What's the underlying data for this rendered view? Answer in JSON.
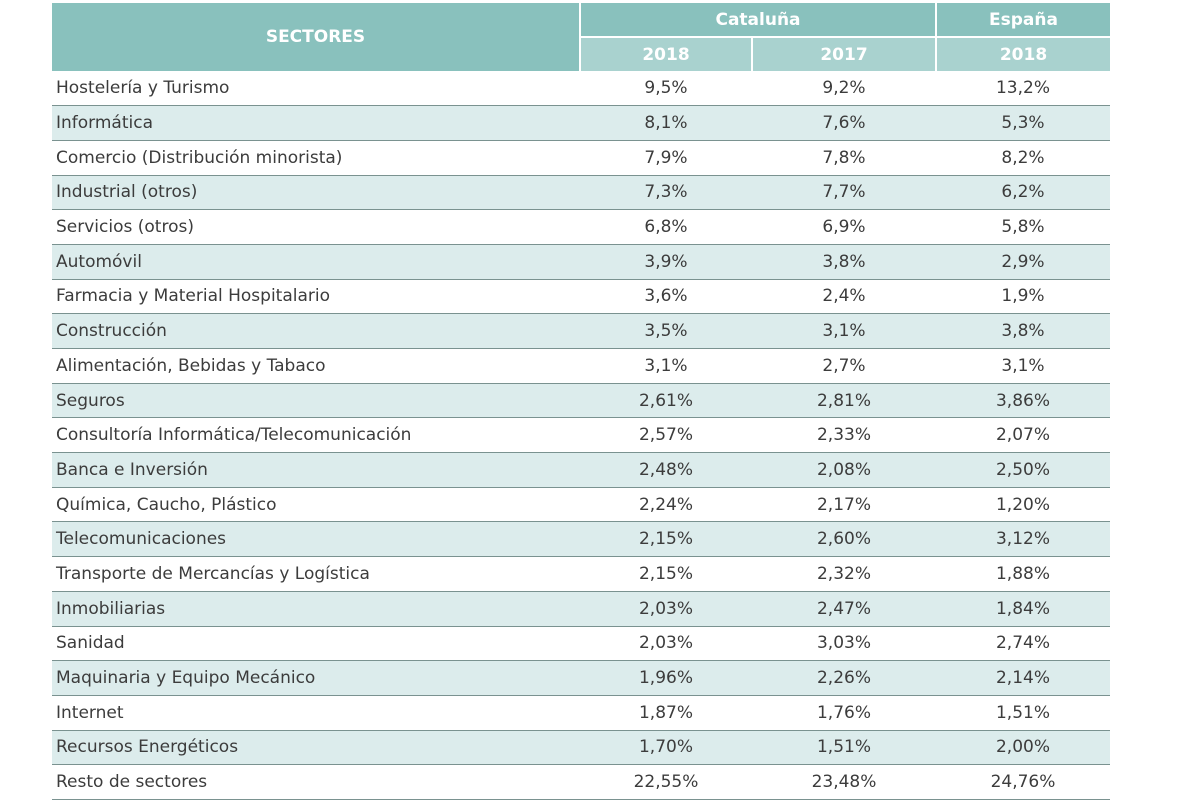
{
  "header": {
    "sectors_label": "SECTORES",
    "groups": [
      {
        "label": "Cataluña",
        "years": [
          "2018",
          "2017"
        ]
      },
      {
        "label": "España",
        "years": [
          "2018"
        ]
      }
    ]
  },
  "rows": [
    {
      "sector": "Hostelería y Turismo",
      "cat2018": "9,5%",
      "cat2017": "9,2%",
      "esp2018": "13,2%"
    },
    {
      "sector": "Informática",
      "cat2018": "8,1%",
      "cat2017": "7,6%",
      "esp2018": "5,3%"
    },
    {
      "sector": "Comercio (Distribución minorista)",
      "cat2018": "7,9%",
      "cat2017": "7,8%",
      "esp2018": "8,2%"
    },
    {
      "sector": "Industrial (otros)",
      "cat2018": "7,3%",
      "cat2017": "7,7%",
      "esp2018": "6,2%"
    },
    {
      "sector": "Servicios (otros)",
      "cat2018": "6,8%",
      "cat2017": "6,9%",
      "esp2018": "5,8%"
    },
    {
      "sector": "Automóvil",
      "cat2018": "3,9%",
      "cat2017": "3,8%",
      "esp2018": "2,9%"
    },
    {
      "sector": "Farmacia y Material Hospitalario",
      "cat2018": "3,6%",
      "cat2017": "2,4%",
      "esp2018": "1,9%"
    },
    {
      "sector": "Construcción",
      "cat2018": "3,5%",
      "cat2017": "3,1%",
      "esp2018": "3,8%"
    },
    {
      "sector": "Alimentación, Bebidas y Tabaco",
      "cat2018": "3,1%",
      "cat2017": "2,7%",
      "esp2018": "3,1%"
    },
    {
      "sector": "Seguros",
      "cat2018": "2,61%",
      "cat2017": "2,81%",
      "esp2018": "3,86%"
    },
    {
      "sector": "Consultoría Informática/Telecomunicación",
      "cat2018": "2,57%",
      "cat2017": "2,33%",
      "esp2018": "2,07%"
    },
    {
      "sector": "Banca e Inversión",
      "cat2018": "2,48%",
      "cat2017": "2,08%",
      "esp2018": "2,50%"
    },
    {
      "sector": "Química, Caucho, Plástico",
      "cat2018": "2,24%",
      "cat2017": "2,17%",
      "esp2018": "1,20%"
    },
    {
      "sector": "Telecomunicaciones",
      "cat2018": "2,15%",
      "cat2017": "2,60%",
      "esp2018": "3,12%"
    },
    {
      "sector": "Transporte de Mercancías y Logística",
      "cat2018": "2,15%",
      "cat2017": "2,32%",
      "esp2018": "1,88%"
    },
    {
      "sector": "Inmobiliarias",
      "cat2018": "2,03%",
      "cat2017": "2,47%",
      "esp2018": "1,84%"
    },
    {
      "sector": "Sanidad",
      "cat2018": "2,03%",
      "cat2017": "3,03%",
      "esp2018": "2,74%"
    },
    {
      "sector": "Maquinaria y Equipo Mecánico",
      "cat2018": "1,96%",
      "cat2017": "2,26%",
      "esp2018": "2,14%"
    },
    {
      "sector": "Internet",
      "cat2018": "1,87%",
      "cat2017": "1,76%",
      "esp2018": "1,51%"
    },
    {
      "sector": "Recursos Energéticos",
      "cat2018": "1,70%",
      "cat2017": "1,51%",
      "esp2018": "2,00%"
    },
    {
      "sector": "Resto de sectores",
      "cat2018": "22,55%",
      "cat2017": "23,48%",
      "esp2018": "24,76%"
    }
  ],
  "colors": {
    "header_dark": "#89c1bd",
    "header_light": "#a9d2cf",
    "row_alt": "#dcecec",
    "text": "#3c3c3c"
  }
}
